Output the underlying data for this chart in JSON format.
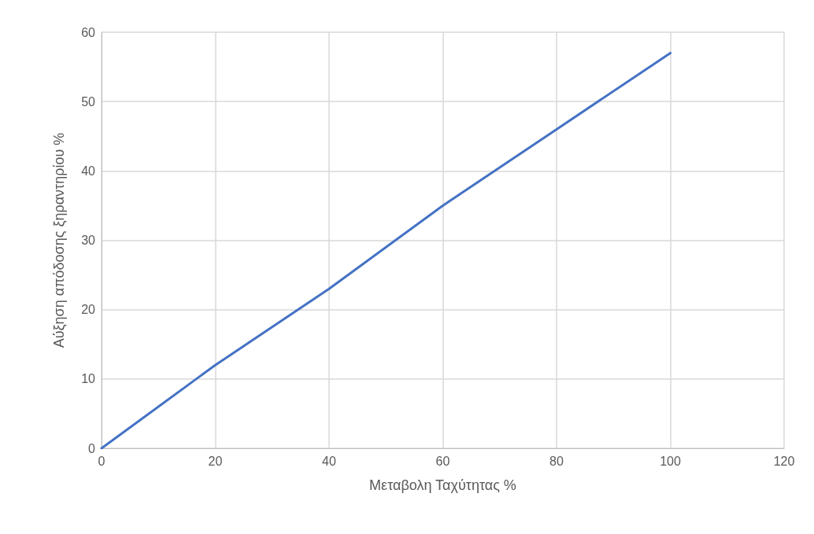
{
  "chart_data": {
    "type": "line",
    "xlabel": "Μεταβολη Ταχύτητας %",
    "ylabel": "Αύξηση απόδοσης ξηραντηρίου %",
    "x": [
      0,
      20,
      40,
      60,
      80,
      100
    ],
    "series": [
      {
        "color": "#4472c4",
        "values": [
          0,
          12,
          23,
          35,
          46,
          57
        ]
      }
    ],
    "xlim": [
      0,
      120
    ],
    "xticks": [
      0,
      20,
      40,
      60,
      80,
      100,
      120
    ],
    "ylim": [
      0,
      60
    ],
    "yticks": [
      0,
      10,
      20,
      30,
      40,
      50,
      60
    ],
    "grid": true,
    "marker": "none",
    "line_style": "solid"
  }
}
